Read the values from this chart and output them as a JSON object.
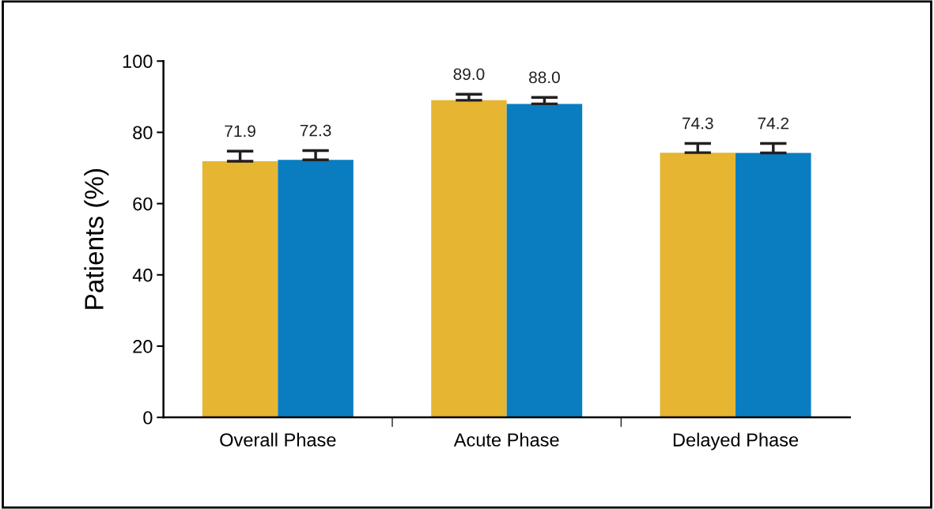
{
  "chart_data": {
    "type": "bar",
    "ylabel": "Patients (%)",
    "categories": [
      "Overall Phase",
      "Acute Phase",
      "Delayed Phase"
    ],
    "series": [
      {
        "color": "#e6b532",
        "values": [
          71.9,
          89.0,
          74.3
        ],
        "value_labels": [
          "71.9",
          "89.0",
          "74.3"
        ],
        "errors": [
          [
            71.9,
            74.7
          ],
          [
            89.0,
            90.7
          ],
          [
            74.3,
            76.9
          ]
        ]
      },
      {
        "color": "#0a7dc0",
        "values": [
          72.3,
          88.0,
          74.2
        ],
        "value_labels": [
          "72.3",
          "88.0",
          "74.2"
        ],
        "errors": [
          [
            72.3,
            74.9
          ],
          [
            88.0,
            89.8
          ],
          [
            74.2,
            76.9
          ]
        ]
      }
    ],
    "ylim": [
      0,
      100
    ],
    "yticks": [
      0,
      20,
      40,
      60,
      80,
      100
    ],
    "grid": false,
    "legend": false
  }
}
